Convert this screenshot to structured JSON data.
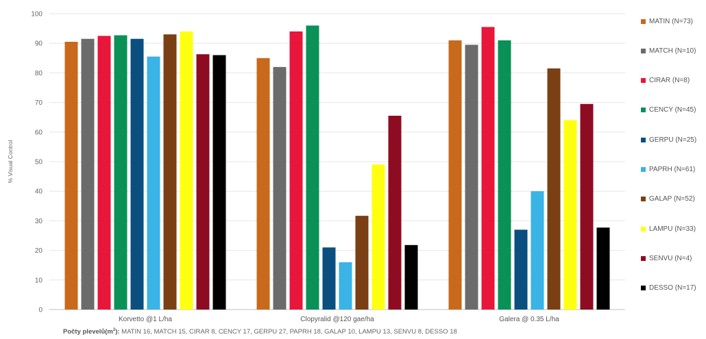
{
  "chart_data": {
    "type": "bar",
    "ylabel": "% Visual Control",
    "xlabel": "",
    "ylim": [
      0,
      100
    ],
    "yticks": [
      0,
      10,
      20,
      30,
      40,
      50,
      60,
      70,
      80,
      90,
      100
    ],
    "grid": true,
    "legend_position": "right",
    "categories": [
      "Korvetto @1 L/ha",
      "Clopyralid @120 gae/ha",
      "Galera @ 0.35 L/ha"
    ],
    "series": [
      {
        "name": "MATIN (N=73)",
        "color": "#c8691c",
        "values": [
          90.5,
          85,
          91
        ]
      },
      {
        "name": "MATCH (N=10)",
        "color": "#6b6b6b",
        "values": [
          91.5,
          82,
          89.5
        ]
      },
      {
        "name": "CIRAR (N=8)",
        "color": "#e8163a",
        "values": [
          92.5,
          94,
          95.5
        ]
      },
      {
        "name": "CENCY (N=45)",
        "color": "#0a9157",
        "values": [
          92.7,
          96,
          91
        ]
      },
      {
        "name": "GERPU (N=25)",
        "color": "#0a4f7f",
        "values": [
          91.5,
          21,
          27
        ]
      },
      {
        "name": "PAPRH (N=61)",
        "color": "#3ab3e6",
        "values": [
          85.5,
          16,
          40
        ]
      },
      {
        "name": "GALAP (N=52)",
        "color": "#7b3f14",
        "values": [
          93,
          31.7,
          81.5
        ]
      },
      {
        "name": "LAMPU (N=33)",
        "color": "#ffff10",
        "values": [
          94,
          49,
          64
        ]
      },
      {
        "name": "SENVU (N=4)",
        "color": "#8e0c22",
        "values": [
          86.3,
          65.5,
          69.5
        ]
      },
      {
        "name": "DESSO (N=17)",
        "color": "#000000",
        "values": [
          86,
          21.8,
          27.7
        ]
      }
    ]
  },
  "footnote": {
    "label_main": "Počty plevelů(m",
    "label_sup": "2",
    "label_end": "):",
    "text": " MATIN 16, MATCH 15, CIRAR 8, CENCY 17, GERPU 27, PAPRH 18, GALAP 10, LAMPU 13, SENVU 8, DESSO 18"
  }
}
